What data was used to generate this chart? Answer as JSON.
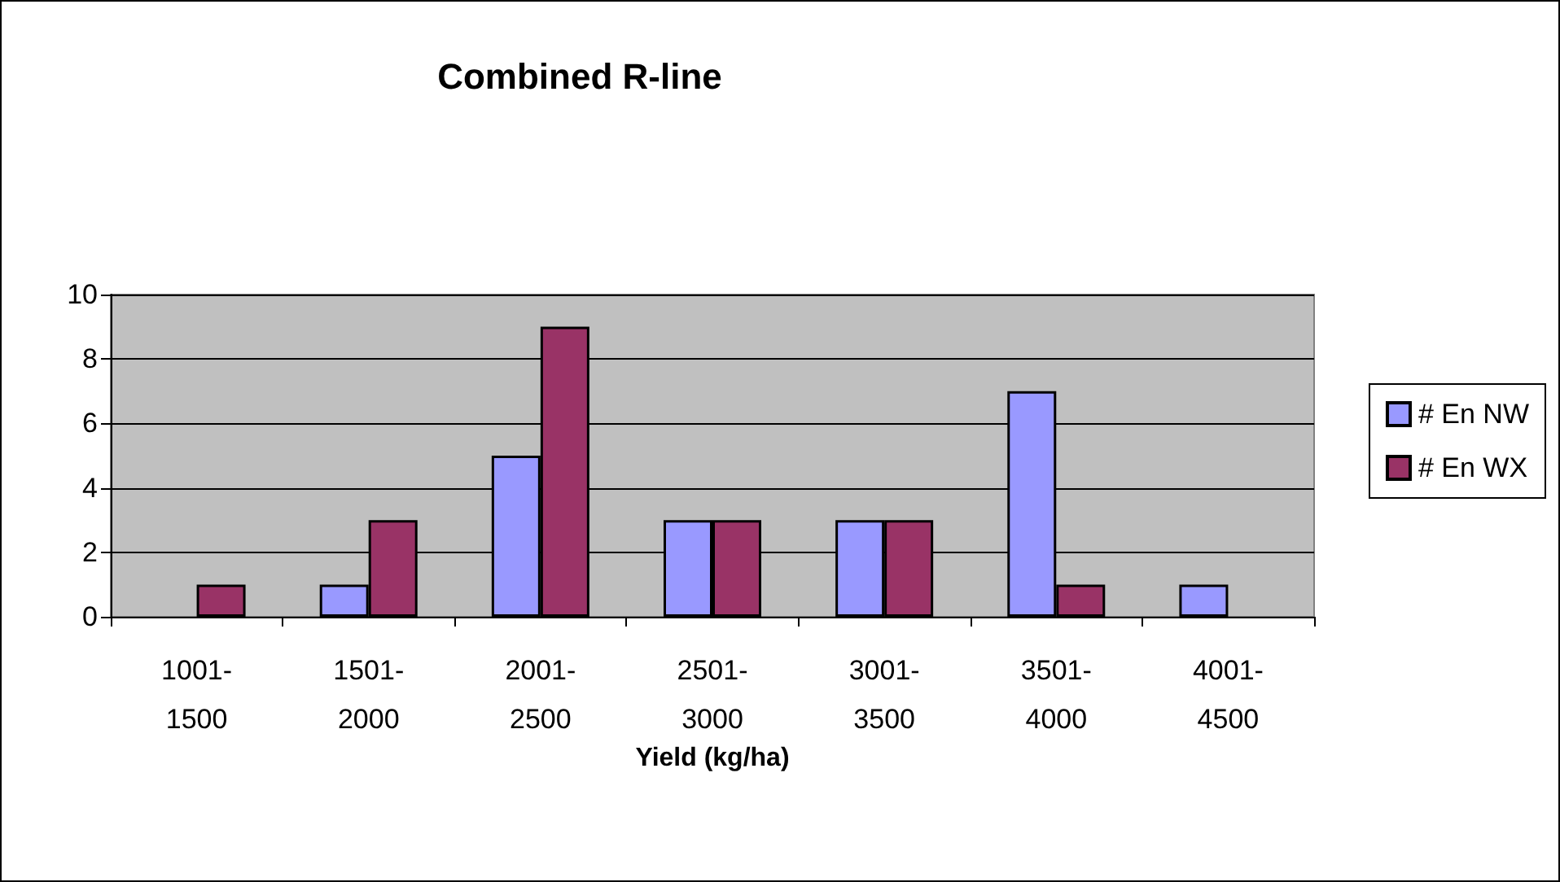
{
  "chart_data": {
    "type": "bar",
    "title": "Combined R-line",
    "xlabel": "Yield (kg/ha)",
    "categories": [
      "1001-1500",
      "1501-2000",
      "2001-2500",
      "2501-3000",
      "3001-3500",
      "3501-4000",
      "4001-4500"
    ],
    "series": [
      {
        "name": "# En NW",
        "color": "#9999ff",
        "values": [
          0,
          1,
          5,
          3,
          3,
          7,
          1
        ]
      },
      {
        "name": "# En WX",
        "color": "#993366",
        "values": [
          1,
          3,
          9,
          3,
          3,
          1,
          0
        ]
      }
    ],
    "ylim": [
      0,
      10
    ],
    "yticks": [
      0,
      2,
      4,
      6,
      8,
      10
    ],
    "grid": "y",
    "legend": "right"
  }
}
